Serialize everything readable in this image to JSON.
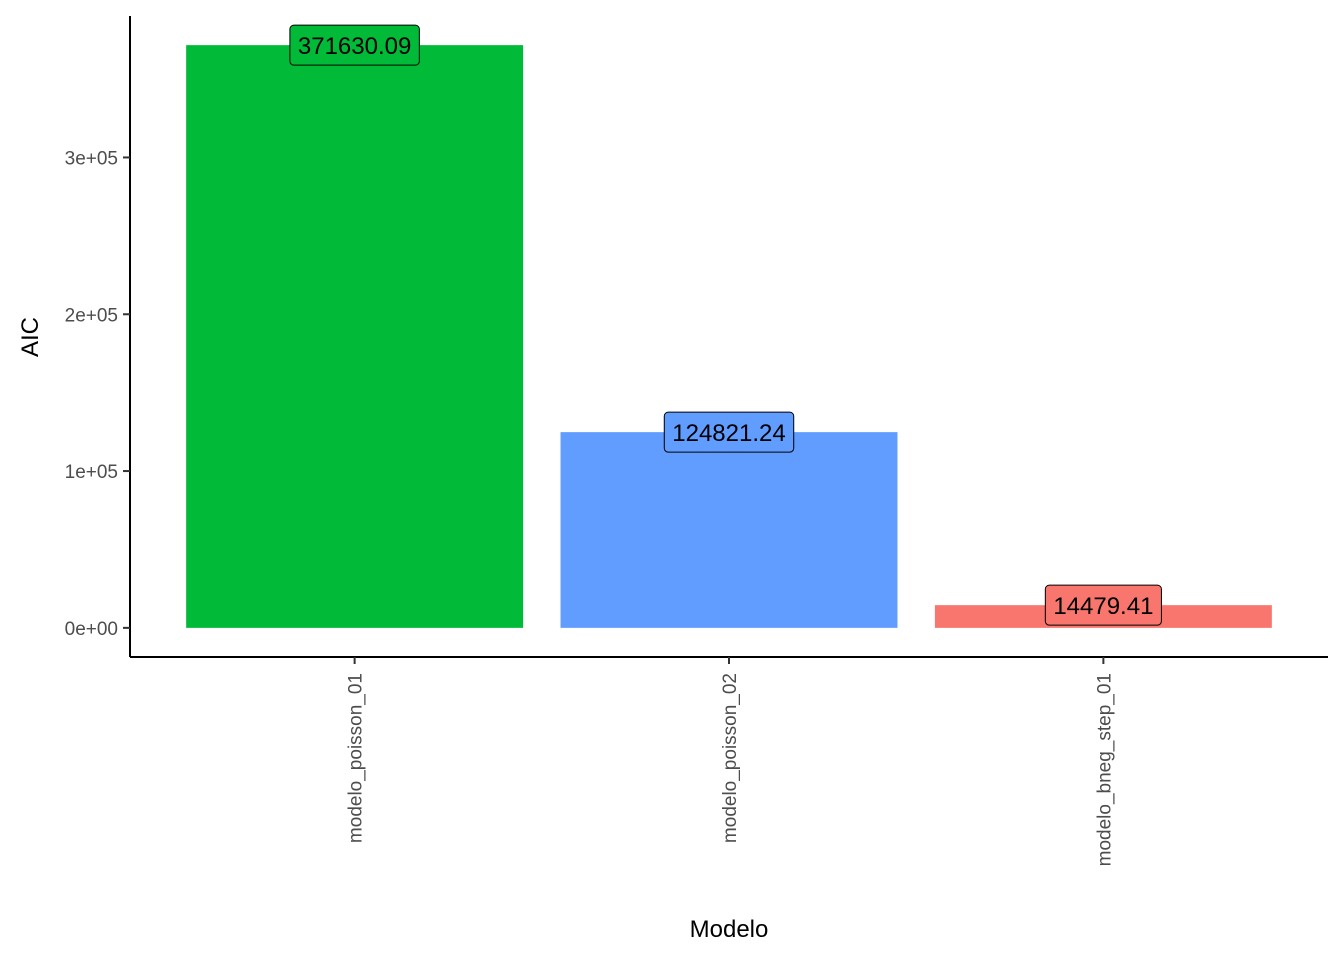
{
  "chart_data": {
    "type": "bar",
    "title": "",
    "xlabel": "Modelo",
    "ylabel": "AIC",
    "categories": [
      "modelo_poisson_01",
      "modelo_poisson_02",
      "modelo_bneg_step_01"
    ],
    "values": [
      371630.09,
      124821.24,
      14479.41
    ],
    "data_labels": [
      "371630.09",
      "124821.24",
      "14479.41"
    ],
    "colors": [
      "#00BA38",
      "#619CFF",
      "#F8766D"
    ],
    "ylim": [
      -18582,
      390212
    ],
    "yticks": [
      0,
      100000,
      200000,
      300000
    ],
    "ytick_labels": [
      "0e+00",
      "1e+05",
      "2e+05",
      "3e+05"
    ],
    "grid": false,
    "legend": "none"
  }
}
